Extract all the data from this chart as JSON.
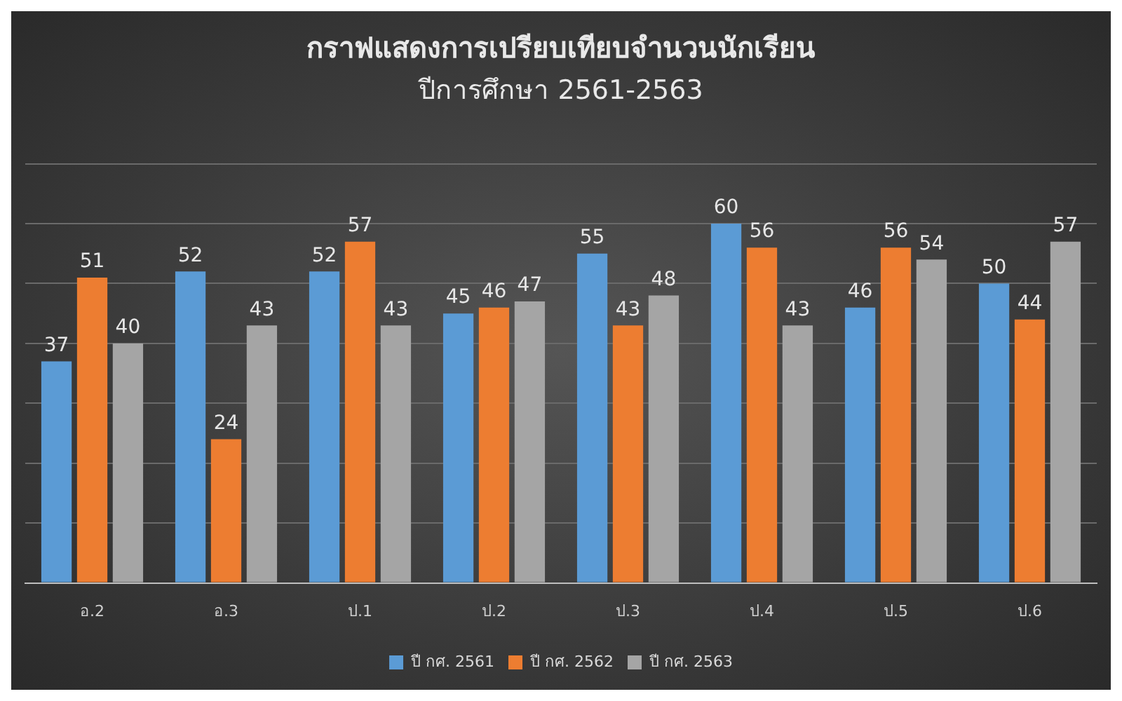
{
  "chart_data": {
    "type": "bar",
    "title": "กราฟแสดงการเปรียบเทียบจำนวนนักเรียน",
    "subtitle": "ปีการศึกษา 2561-2563",
    "categories": [
      "อ.2",
      "อ.3",
      "ป.1",
      "ป.2",
      "ป.3",
      "ป.4",
      "ป.5",
      "ป.6"
    ],
    "series": [
      {
        "name": "ปี กศ. 2561",
        "color": "#5b9bd5",
        "values": [
          37,
          52,
          52,
          45,
          55,
          60,
          46,
          50
        ]
      },
      {
        "name": "ปี กศ. 2562",
        "color": "#ed7d31",
        "values": [
          51,
          24,
          57,
          46,
          43,
          56,
          56,
          44
        ]
      },
      {
        "name": "ปี กศ. 2563",
        "color": "#a5a5a5",
        "values": [
          40,
          43,
          43,
          47,
          48,
          43,
          54,
          57
        ]
      }
    ],
    "ylim": [
      0,
      70
    ],
    "yticks": [
      {
        "value": 0,
        "label": null
      },
      {
        "value": 10,
        "label": null
      },
      {
        "value": 20,
        "label": null
      },
      {
        "value": 30,
        "label": null
      },
      {
        "value": 40,
        "label": null
      },
      {
        "value": 50,
        "label": null
      },
      {
        "value": 60,
        "label": null
      },
      {
        "value": 70,
        "label": null
      }
    ],
    "grid": "y",
    "tick_labels": "x",
    "data_labels": true,
    "legend": "bottom"
  }
}
